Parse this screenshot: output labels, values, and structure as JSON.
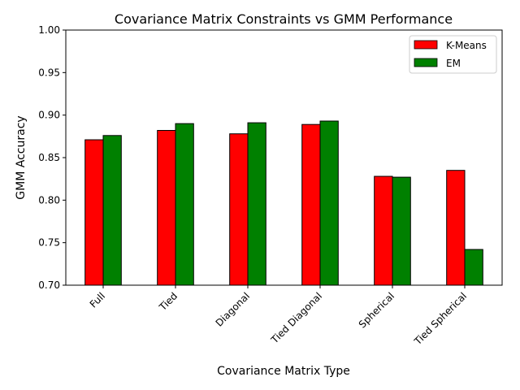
{
  "chart_data": {
    "type": "bar",
    "title": "Covariance Matrix Constraints vs GMM Performance",
    "xlabel": "Covariance Matrix Type",
    "ylabel": "GMM Accuracy",
    "categories": [
      "Full",
      "Tied",
      "Diagonal",
      "Tied Diagonal",
      "Spherical",
      "Tied Spherical"
    ],
    "series": [
      {
        "name": "K-Means",
        "color": "#ff0000",
        "values": [
          0.871,
          0.882,
          0.878,
          0.889,
          0.828,
          0.835
        ]
      },
      {
        "name": "EM",
        "color": "#008000",
        "values": [
          0.876,
          0.89,
          0.891,
          0.893,
          0.827,
          0.742
        ]
      }
    ],
    "ylim": [
      0.7,
      1.0
    ],
    "yticks": [
      "0.70",
      "0.75",
      "0.80",
      "0.85",
      "0.90",
      "0.95",
      "1.00"
    ],
    "grid": false,
    "legend_position": "top-right",
    "bar_edge_color": "#000000"
  }
}
